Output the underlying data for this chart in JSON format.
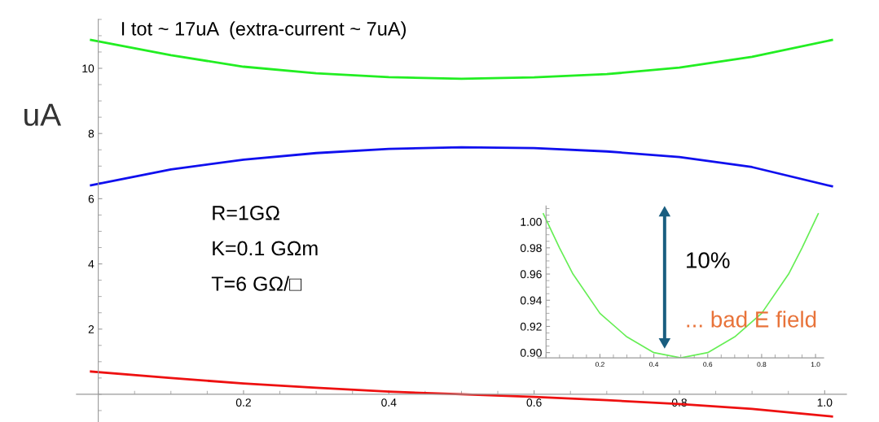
{
  "chart_data": [
    {
      "type": "line",
      "title": "I tot ~ 17uA  (extra-current ~ 7uA)",
      "ylabel": "uA",
      "annotations": [
        "R=1GΩ",
        "K=0.1 GΩm",
        "T=6 GΩ/□"
      ],
      "xlim": [
        -0.03,
        1.03
      ],
      "ylim": [
        -0.85,
        11.5
      ],
      "xticks": [
        0.2,
        0.4,
        0.6,
        0.8,
        {
          "value": 1.0,
          "label": "1.0"
        }
      ],
      "yticks": [
        2,
        4,
        6,
        8,
        10
      ],
      "series": [
        {
          "color": "#22ee22",
          "x": [
            -0.01,
            0.1,
            0.2,
            0.3,
            0.4,
            0.5,
            0.6,
            0.7,
            0.8,
            0.9,
            1.01
          ],
          "values": [
            10.87,
            10.4,
            10.05,
            9.85,
            9.73,
            9.68,
            9.72,
            9.82,
            10.02,
            10.35,
            10.87
          ]
        },
        {
          "color": "#1010ee",
          "x": [
            -0.01,
            0.1,
            0.2,
            0.3,
            0.4,
            0.5,
            0.6,
            0.7,
            0.8,
            0.9,
            1.01
          ],
          "values": [
            6.41,
            6.9,
            7.2,
            7.4,
            7.53,
            7.58,
            7.55,
            7.45,
            7.28,
            6.97,
            6.38
          ]
        },
        {
          "color": "#ee1111",
          "x": [
            -0.01,
            0.1,
            0.2,
            0.3,
            0.4,
            0.5,
            0.6,
            0.7,
            0.8,
            0.9,
            1.01
          ],
          "values": [
            0.7,
            0.5,
            0.33,
            0.2,
            0.08,
            0.0,
            -0.08,
            -0.18,
            -0.3,
            -0.45,
            -0.68
          ]
        }
      ]
    },
    {
      "type": "line",
      "annotations": [
        "10%",
        "... bad E field"
      ],
      "xlim": [
        -0.03,
        1.03
      ],
      "ylim": [
        0.896,
        1.012
      ],
      "xticks": [
        0.2,
        0.4,
        0.6,
        0.8,
        {
          "value": 1.0,
          "label": "1.0"
        }
      ],
      "yticks": [
        {
          "value": 0.9,
          "label": "0.90"
        },
        0.92,
        0.94,
        0.96,
        0.98,
        {
          "value": 1.0,
          "label": "1.00"
        }
      ],
      "series": [
        {
          "color": "#66ee55",
          "x": [
            -0.01,
            0.05,
            0.1,
            0.2,
            0.3,
            0.4,
            0.5,
            0.6,
            0.7,
            0.8,
            0.9,
            0.95,
            1.01
          ],
          "values": [
            1.006,
            0.98,
            0.96,
            0.93,
            0.912,
            0.9,
            0.896,
            0.9,
            0.912,
            0.93,
            0.96,
            0.98,
            1.006
          ]
        }
      ]
    }
  ]
}
